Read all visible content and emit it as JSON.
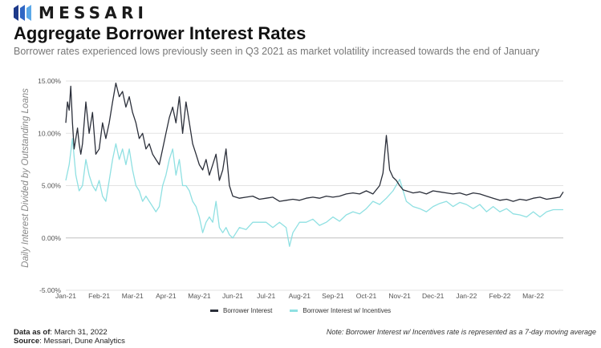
{
  "brand": {
    "name": "MESSARI",
    "logo_icon": "messari-logo-icon"
  },
  "header": {
    "title": "Aggregate Borrower Interest Rates",
    "subtitle": "Borrower rates experienced lows previously seen in Q3 2021 as market volatility increased towards the end of January"
  },
  "footer": {
    "data_as_of_label": "Data as of",
    "data_as_of_value": "March 31, 2022",
    "source_label": "Source",
    "source_value": "Messari, Dune Analytics",
    "note": "Note: Borrower Interest w/ Incentives rate is represented as a 7-day moving average"
  },
  "colors": {
    "borrower": "#2b2f3a",
    "incentives": "#8fe0e2",
    "grid": "#e3e3e3",
    "baseline": "#bfbfbf"
  },
  "chart_data": {
    "type": "line",
    "title": "Aggregate Borrower Interest Rates",
    "ylabel": "Daily Interest Divided by Outstanding Loans",
    "xlabel": "",
    "ylim": [
      -5,
      15
    ],
    "yticks": [
      "15.00%",
      "10.00%",
      "5.00%",
      "0.00%",
      "-5.00%"
    ],
    "ytick_values": [
      15,
      10,
      5,
      0,
      -5
    ],
    "x_categories": [
      "Jan-21",
      "Feb-21",
      "Mar-21",
      "Apr-21",
      "May-21",
      "Jun-21",
      "Jul-21",
      "Aug-21",
      "Sep-21",
      "Oct-21",
      "Nov-21",
      "Dec-21",
      "Jan-22",
      "Feb-22",
      "Mar-22"
    ],
    "x_index_range": [
      0,
      14.9
    ],
    "grid": true,
    "legend_position": "bottom",
    "series": [
      {
        "name": "Borrower Interest",
        "color": "#2b2f3a",
        "x": [
          0,
          0.05,
          0.1,
          0.15,
          0.2,
          0.25,
          0.3,
          0.35,
          0.4,
          0.45,
          0.5,
          0.6,
          0.7,
          0.8,
          0.9,
          1.0,
          1.1,
          1.2,
          1.3,
          1.4,
          1.5,
          1.6,
          1.7,
          1.8,
          1.9,
          2.0,
          2.1,
          2.2,
          2.3,
          2.4,
          2.5,
          2.6,
          2.7,
          2.8,
          2.9,
          3.0,
          3.1,
          3.2,
          3.3,
          3.4,
          3.5,
          3.6,
          3.7,
          3.8,
          3.9,
          4.0,
          4.1,
          4.2,
          4.3,
          4.4,
          4.5,
          4.6,
          4.7,
          4.8,
          4.9,
          5.0,
          5.2,
          5.4,
          5.6,
          5.8,
          6.0,
          6.2,
          6.4,
          6.6,
          6.8,
          7.0,
          7.2,
          7.4,
          7.6,
          7.8,
          8.0,
          8.2,
          8.4,
          8.6,
          8.8,
          9.0,
          9.2,
          9.4,
          9.5,
          9.6,
          9.7,
          9.8,
          9.9,
          10.0,
          10.1,
          10.2,
          10.4,
          10.6,
          10.8,
          11.0,
          11.2,
          11.4,
          11.6,
          11.8,
          12.0,
          12.2,
          12.4,
          12.6,
          12.8,
          13.0,
          13.2,
          13.4,
          13.6,
          13.8,
          14.0,
          14.2,
          14.4,
          14.6,
          14.8,
          14.9
        ],
        "values": [
          11.0,
          13.0,
          12.2,
          14.5,
          11.0,
          8.5,
          9.5,
          10.5,
          9.0,
          8.0,
          9.0,
          13.0,
          10.0,
          12.0,
          8.0,
          8.5,
          11.0,
          9.5,
          11.0,
          13.0,
          14.8,
          13.5,
          14.0,
          12.5,
          13.5,
          12.0,
          11.0,
          9.5,
          10.0,
          8.5,
          9.0,
          8.0,
          7.5,
          7.0,
          8.5,
          10.0,
          11.5,
          12.5,
          11.0,
          13.5,
          10.0,
          13.0,
          11.0,
          9.0,
          8.0,
          7.0,
          6.5,
          7.5,
          6.0,
          7.0,
          8.0,
          5.5,
          6.5,
          8.5,
          5.0,
          4.0,
          3.8,
          3.9,
          4.0,
          3.7,
          3.8,
          3.9,
          3.5,
          3.6,
          3.7,
          3.6,
          3.8,
          3.9,
          3.8,
          4.0,
          3.9,
          4.0,
          4.2,
          4.3,
          4.2,
          4.5,
          4.2,
          5.0,
          6.2,
          9.8,
          6.5,
          5.8,
          5.5,
          5.0,
          4.6,
          4.5,
          4.3,
          4.4,
          4.2,
          4.5,
          4.4,
          4.3,
          4.2,
          4.3,
          4.1,
          4.3,
          4.2,
          4.0,
          3.8,
          3.6,
          3.7,
          3.5,
          3.7,
          3.6,
          3.8,
          3.9,
          3.7,
          3.8,
          3.9,
          4.4
        ]
      },
      {
        "name": "Borrower Interest w/ Incentives",
        "color": "#8fe0e2",
        "x": [
          0,
          0.1,
          0.2,
          0.3,
          0.4,
          0.5,
          0.6,
          0.7,
          0.8,
          0.9,
          1.0,
          1.1,
          1.2,
          1.3,
          1.4,
          1.5,
          1.6,
          1.7,
          1.8,
          1.9,
          2.0,
          2.1,
          2.2,
          2.3,
          2.4,
          2.5,
          2.6,
          2.7,
          2.8,
          2.9,
          3.0,
          3.1,
          3.2,
          3.3,
          3.4,
          3.5,
          3.6,
          3.7,
          3.8,
          3.9,
          4.0,
          4.1,
          4.2,
          4.3,
          4.4,
          4.5,
          4.6,
          4.7,
          4.8,
          4.9,
          5.0,
          5.2,
          5.4,
          5.6,
          5.8,
          6.0,
          6.2,
          6.4,
          6.6,
          6.7,
          6.8,
          7.0,
          7.2,
          7.4,
          7.6,
          7.8,
          8.0,
          8.2,
          8.4,
          8.6,
          8.8,
          9.0,
          9.2,
          9.4,
          9.6,
          9.8,
          10.0,
          10.2,
          10.4,
          10.6,
          10.8,
          11.0,
          11.2,
          11.4,
          11.6,
          11.8,
          12.0,
          12.2,
          12.4,
          12.6,
          12.8,
          13.0,
          13.2,
          13.4,
          13.6,
          13.8,
          14.0,
          14.2,
          14.4,
          14.6,
          14.8,
          14.9
        ],
        "values": [
          5.5,
          7.0,
          9.5,
          6.0,
          4.5,
          5.0,
          7.5,
          6.0,
          5.0,
          4.5,
          5.5,
          4.0,
          3.5,
          5.5,
          7.5,
          9.0,
          7.5,
          8.5,
          7.0,
          8.5,
          6.5,
          5.0,
          4.5,
          3.5,
          4.0,
          3.5,
          3.0,
          2.5,
          3.0,
          5.0,
          6.0,
          7.5,
          8.5,
          6.0,
          7.5,
          5.0,
          5.0,
          4.5,
          3.5,
          3.0,
          2.0,
          0.5,
          1.5,
          2.0,
          1.5,
          3.5,
          1.0,
          0.5,
          1.0,
          0.3,
          0.0,
          1.0,
          0.8,
          1.5,
          1.5,
          1.5,
          1.0,
          1.5,
          1.0,
          -0.8,
          0.5,
          1.5,
          1.5,
          1.8,
          1.2,
          1.5,
          2.0,
          1.6,
          2.2,
          2.5,
          2.3,
          2.8,
          3.5,
          3.2,
          3.8,
          4.5,
          5.6,
          3.5,
          3.0,
          2.8,
          2.5,
          3.0,
          3.3,
          3.5,
          3.0,
          3.4,
          3.2,
          2.8,
          3.2,
          2.5,
          3.0,
          2.5,
          2.8,
          2.3,
          2.2,
          2.0,
          2.5,
          2.0,
          2.5,
          2.7,
          2.7,
          2.7
        ]
      }
    ]
  }
}
